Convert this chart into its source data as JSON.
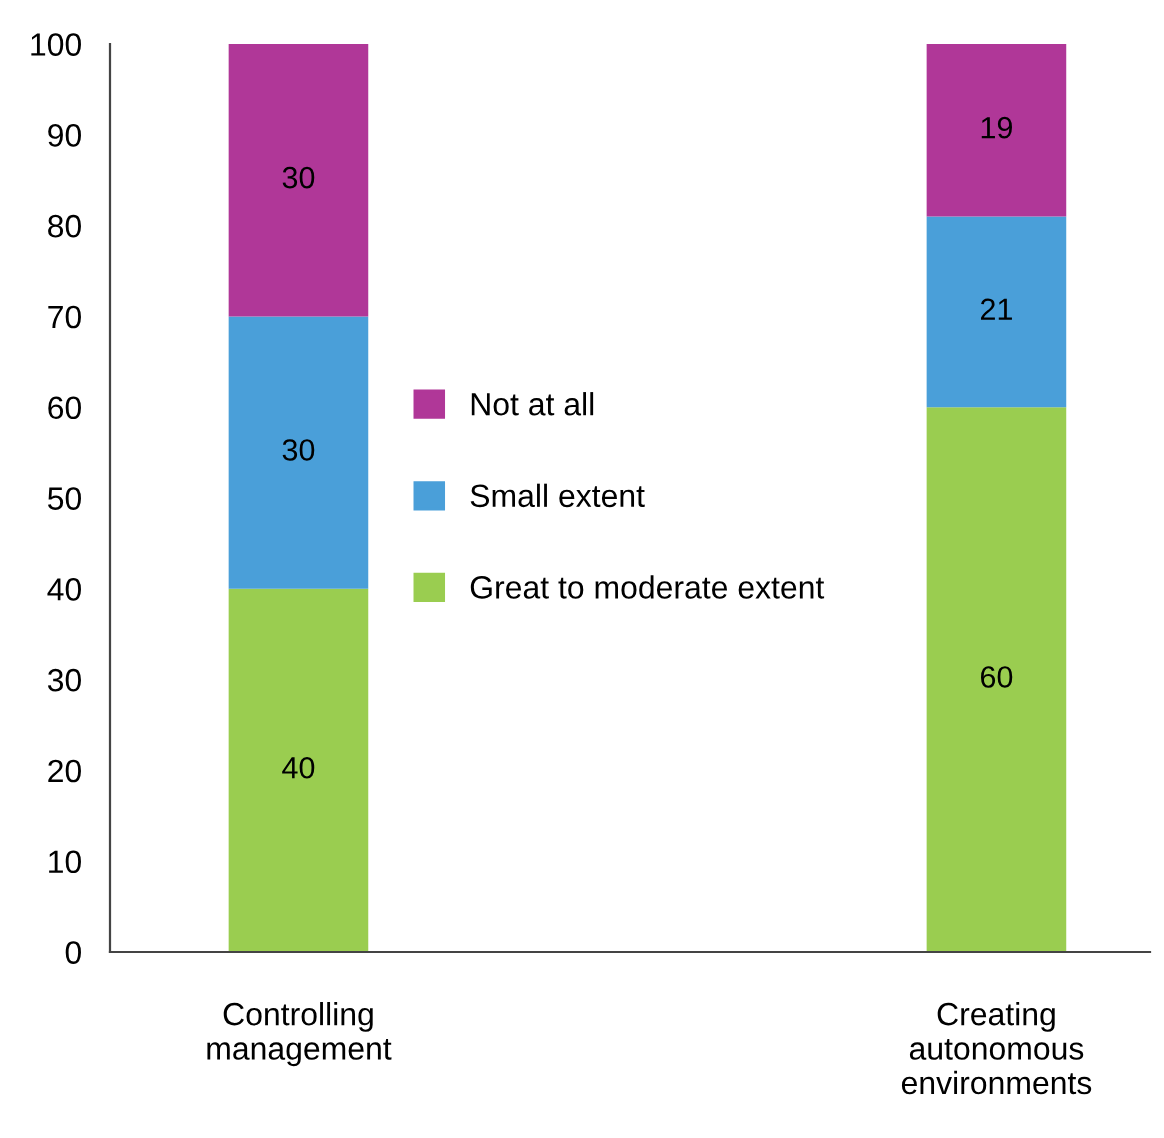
{
  "chart_data": {
    "type": "bar",
    "stacked": true,
    "categories": [
      "Controlling management",
      "Creating autonomous environments"
    ],
    "series": [
      {
        "name": "Great to moderate extent",
        "color": "#9acd50",
        "values": [
          40,
          60
        ]
      },
      {
        "name": "Small extent",
        "color": "#4a9fd9",
        "values": [
          30,
          21
        ]
      },
      {
        "name": "Not at all",
        "color": "#b03798",
        "values": [
          30,
          19
        ]
      }
    ],
    "ylim": [
      0,
      100
    ],
    "yticks": [
      0,
      10,
      20,
      30,
      40,
      50,
      60,
      70,
      80,
      90,
      100
    ],
    "data_labels": true,
    "legend": "center",
    "grid": false
  }
}
